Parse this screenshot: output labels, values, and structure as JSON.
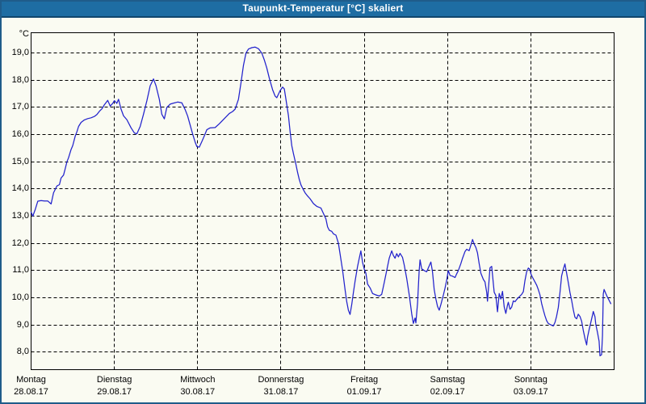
{
  "window": {
    "title": "Taupunkt-Temperatur [°C] skaliert"
  },
  "colors": {
    "titlebar_bg": "#1e6da3",
    "titlebar_text": "#ffffff",
    "titlebar_edge": "#11466d",
    "window_border": "#1f5c8a",
    "background": "#fafbf2",
    "plot_border": "#000000",
    "grid": "#000000",
    "line": "#2222cc",
    "text": "#000000"
  },
  "chart_data": {
    "type": "line",
    "title": "Taupunkt-Temperatur [°C] skaliert",
    "grid": {
      "style": "dashed",
      "color": "#000000"
    },
    "legend": "none",
    "y_axis": {
      "unit": "°C",
      "tick_labels": [
        "19,0",
        "18,0",
        "17,0",
        "16,0",
        "15,0",
        "14,0",
        "13,0",
        "12,0",
        "11,0",
        "10,0",
        "9,0",
        "8,0"
      ],
      "tick_values": [
        19,
        18,
        17,
        16,
        15,
        14,
        13,
        12,
        11,
        10,
        9,
        8
      ],
      "range": [
        7.35,
        19.75
      ]
    },
    "x_axis": {
      "range_days": [
        0,
        7
      ],
      "tick_labels": [
        {
          "day": "Montag",
          "date": "28.08.17"
        },
        {
          "day": "Dienstag",
          "date": "29.08.17"
        },
        {
          "day": "Mittwoch",
          "date": "30.08.17"
        },
        {
          "day": "Donnerstag",
          "date": "31.08.17"
        },
        {
          "day": "Freitag",
          "date": "01.09.17"
        },
        {
          "day": "Samstag",
          "date": "02.09.17"
        },
        {
          "day": "Sonntag",
          "date": "03.09.17"
        }
      ]
    },
    "series": [
      {
        "name": "Taupunkt-Temperatur",
        "color": "#2222cc",
        "points_day_degC": [
          [
            0.0,
            13.15
          ],
          [
            0.02,
            13.0
          ],
          [
            0.05,
            13.25
          ],
          [
            0.08,
            13.55
          ],
          [
            0.12,
            13.57
          ],
          [
            0.16,
            13.56
          ],
          [
            0.2,
            13.56
          ],
          [
            0.24,
            13.45
          ],
          [
            0.27,
            13.86
          ],
          [
            0.31,
            14.11
          ],
          [
            0.34,
            14.16
          ],
          [
            0.36,
            14.4
          ],
          [
            0.39,
            14.51
          ],
          [
            0.41,
            14.75
          ],
          [
            0.43,
            15.0
          ],
          [
            0.45,
            15.15
          ],
          [
            0.48,
            15.45
          ],
          [
            0.5,
            15.6
          ],
          [
            0.53,
            15.95
          ],
          [
            0.55,
            16.1
          ],
          [
            0.57,
            16.3
          ],
          [
            0.6,
            16.45
          ],
          [
            0.64,
            16.54
          ],
          [
            0.68,
            16.59
          ],
          [
            0.72,
            16.62
          ],
          [
            0.76,
            16.67
          ],
          [
            0.79,
            16.74
          ],
          [
            0.82,
            16.86
          ],
          [
            0.85,
            16.95
          ],
          [
            0.88,
            17.1
          ],
          [
            0.92,
            17.26
          ],
          [
            0.95,
            17.05
          ],
          [
            0.98,
            17.15
          ],
          [
            1.0,
            17.25
          ],
          [
            1.03,
            17.15
          ],
          [
            1.05,
            17.3
          ],
          [
            1.08,
            16.94
          ],
          [
            1.11,
            16.69
          ],
          [
            1.15,
            16.55
          ],
          [
            1.2,
            16.25
          ],
          [
            1.24,
            16.06
          ],
          [
            1.27,
            16.03
          ],
          [
            1.31,
            16.3
          ],
          [
            1.35,
            16.75
          ],
          [
            1.39,
            17.25
          ],
          [
            1.43,
            17.8
          ],
          [
            1.47,
            18.05
          ],
          [
            1.5,
            17.8
          ],
          [
            1.54,
            17.3
          ],
          [
            1.57,
            16.75
          ],
          [
            1.6,
            16.58
          ],
          [
            1.63,
            17.0
          ],
          [
            1.67,
            17.12
          ],
          [
            1.71,
            17.16
          ],
          [
            1.76,
            17.2
          ],
          [
            1.81,
            17.17
          ],
          [
            1.85,
            16.92
          ],
          [
            1.88,
            16.68
          ],
          [
            1.91,
            16.35
          ],
          [
            1.94,
            16.02
          ],
          [
            1.97,
            15.72
          ],
          [
            1.99,
            15.56
          ],
          [
            2.02,
            15.54
          ],
          [
            2.05,
            15.74
          ],
          [
            2.08,
            15.95
          ],
          [
            2.11,
            16.18
          ],
          [
            2.15,
            16.25
          ],
          [
            2.21,
            16.26
          ],
          [
            2.26,
            16.4
          ],
          [
            2.32,
            16.59
          ],
          [
            2.38,
            16.78
          ],
          [
            2.42,
            16.85
          ],
          [
            2.45,
            16.94
          ],
          [
            2.49,
            17.3
          ],
          [
            2.52,
            17.9
          ],
          [
            2.55,
            18.55
          ],
          [
            2.58,
            19.0
          ],
          [
            2.61,
            19.15
          ],
          [
            2.65,
            19.2
          ],
          [
            2.69,
            19.22
          ],
          [
            2.73,
            19.16
          ],
          [
            2.77,
            19.0
          ],
          [
            2.8,
            18.75
          ],
          [
            2.83,
            18.45
          ],
          [
            2.86,
            18.08
          ],
          [
            2.9,
            17.65
          ],
          [
            2.93,
            17.42
          ],
          [
            2.95,
            17.36
          ],
          [
            2.99,
            17.62
          ],
          [
            3.02,
            17.75
          ],
          [
            3.04,
            17.68
          ],
          [
            3.06,
            17.3
          ],
          [
            3.09,
            16.7
          ],
          [
            3.11,
            16.1
          ],
          [
            3.13,
            15.6
          ],
          [
            3.15,
            15.3
          ],
          [
            3.18,
            14.9
          ],
          [
            3.2,
            14.6
          ],
          [
            3.22,
            14.35
          ],
          [
            3.24,
            14.15
          ],
          [
            3.26,
            14.03
          ],
          [
            3.29,
            13.86
          ],
          [
            3.32,
            13.74
          ],
          [
            3.35,
            13.64
          ],
          [
            3.39,
            13.46
          ],
          [
            3.43,
            13.36
          ],
          [
            3.48,
            13.3
          ],
          [
            3.51,
            13.1
          ],
          [
            3.54,
            12.9
          ],
          [
            3.56,
            12.6
          ],
          [
            3.58,
            12.48
          ],
          [
            3.61,
            12.44
          ],
          [
            3.63,
            12.35
          ],
          [
            3.66,
            12.3
          ],
          [
            3.69,
            12.0
          ],
          [
            3.71,
            11.6
          ],
          [
            3.74,
            11.0
          ],
          [
            3.77,
            10.3
          ],
          [
            3.79,
            9.85
          ],
          [
            3.81,
            9.53
          ],
          [
            3.83,
            9.38
          ],
          [
            3.85,
            9.75
          ],
          [
            3.87,
            10.2
          ],
          [
            3.89,
            10.6
          ],
          [
            3.92,
            11.15
          ],
          [
            3.94,
            11.45
          ],
          [
            3.96,
            11.72
          ],
          [
            3.98,
            11.3
          ],
          [
            4.0,
            11.05
          ],
          [
            4.02,
            10.9
          ],
          [
            4.04,
            10.5
          ],
          [
            4.07,
            10.36
          ],
          [
            4.1,
            10.15
          ],
          [
            4.14,
            10.1
          ],
          [
            4.18,
            10.06
          ],
          [
            4.21,
            10.12
          ],
          [
            4.24,
            10.55
          ],
          [
            4.27,
            11.0
          ],
          [
            4.3,
            11.45
          ],
          [
            4.33,
            11.72
          ],
          [
            4.35,
            11.55
          ],
          [
            4.37,
            11.45
          ],
          [
            4.39,
            11.62
          ],
          [
            4.41,
            11.5
          ],
          [
            4.43,
            11.63
          ],
          [
            4.46,
            11.48
          ],
          [
            4.48,
            11.2
          ],
          [
            4.51,
            10.7
          ],
          [
            4.54,
            10.1
          ],
          [
            4.57,
            9.4
          ],
          [
            4.59,
            9.05
          ],
          [
            4.61,
            9.25
          ],
          [
            4.62,
            9.07
          ],
          [
            4.64,
            9.8
          ],
          [
            4.66,
            11.0
          ],
          [
            4.67,
            11.39
          ],
          [
            4.69,
            11.06
          ],
          [
            4.72,
            11.0
          ],
          [
            4.75,
            10.95
          ],
          [
            4.77,
            11.1
          ],
          [
            4.8,
            11.31
          ],
          [
            4.82,
            10.95
          ],
          [
            4.84,
            10.3
          ],
          [
            4.86,
            9.95
          ],
          [
            4.88,
            9.68
          ],
          [
            4.9,
            9.54
          ],
          [
            4.92,
            9.75
          ],
          [
            4.95,
            10.1
          ],
          [
            4.97,
            10.35
          ],
          [
            4.99,
            10.65
          ],
          [
            5.0,
            10.83
          ],
          [
            5.01,
            11.0
          ],
          [
            5.03,
            10.82
          ],
          [
            5.06,
            10.79
          ],
          [
            5.09,
            10.74
          ],
          [
            5.11,
            10.88
          ],
          [
            5.13,
            11.0
          ],
          [
            5.16,
            11.25
          ],
          [
            5.18,
            11.45
          ],
          [
            5.21,
            11.7
          ],
          [
            5.23,
            11.78
          ],
          [
            5.26,
            11.73
          ],
          [
            5.28,
            11.93
          ],
          [
            5.3,
            12.14
          ],
          [
            5.32,
            11.97
          ],
          [
            5.34,
            11.85
          ],
          [
            5.36,
            11.65
          ],
          [
            5.38,
            11.25
          ],
          [
            5.4,
            10.9
          ],
          [
            5.43,
            10.67
          ],
          [
            5.45,
            10.58
          ],
          [
            5.47,
            10.2
          ],
          [
            5.48,
            9.87
          ],
          [
            5.51,
            11.1
          ],
          [
            5.53,
            11.15
          ],
          [
            5.56,
            10.2
          ],
          [
            5.58,
            10.08
          ],
          [
            5.6,
            9.48
          ],
          [
            5.62,
            10.15
          ],
          [
            5.64,
            9.95
          ],
          [
            5.66,
            10.23
          ],
          [
            5.68,
            9.66
          ],
          [
            5.7,
            9.42
          ],
          [
            5.72,
            9.73
          ],
          [
            5.73,
            9.83
          ],
          [
            5.75,
            9.57
          ],
          [
            5.77,
            9.65
          ],
          [
            5.79,
            9.88
          ],
          [
            5.81,
            9.85
          ],
          [
            5.83,
            9.93
          ],
          [
            5.86,
            10.03
          ],
          [
            5.89,
            10.12
          ],
          [
            5.91,
            10.22
          ],
          [
            5.93,
            10.63
          ],
          [
            5.95,
            10.95
          ],
          [
            5.97,
            11.09
          ],
          [
            5.99,
            11.04
          ],
          [
            6.0,
            10.88
          ],
          [
            6.02,
            10.75
          ],
          [
            6.05,
            10.58
          ],
          [
            6.07,
            10.46
          ],
          [
            6.09,
            10.3
          ],
          [
            6.11,
            10.1
          ],
          [
            6.13,
            9.78
          ],
          [
            6.15,
            9.55
          ],
          [
            6.17,
            9.33
          ],
          [
            6.19,
            9.15
          ],
          [
            6.21,
            9.05
          ],
          [
            6.24,
            9.0
          ],
          [
            6.27,
            8.96
          ],
          [
            6.29,
            9.09
          ],
          [
            6.31,
            9.32
          ],
          [
            6.33,
            9.64
          ],
          [
            6.35,
            10.2
          ],
          [
            6.37,
            10.8
          ],
          [
            6.39,
            11.05
          ],
          [
            6.41,
            11.24
          ],
          [
            6.43,
            10.9
          ],
          [
            6.45,
            10.55
          ],
          [
            6.47,
            10.2
          ],
          [
            6.49,
            9.9
          ],
          [
            6.51,
            9.55
          ],
          [
            6.53,
            9.28
          ],
          [
            6.55,
            9.22
          ],
          [
            6.57,
            9.39
          ],
          [
            6.59,
            9.31
          ],
          [
            6.61,
            9.13
          ],
          [
            6.63,
            8.8
          ],
          [
            6.65,
            8.5
          ],
          [
            6.67,
            8.26
          ],
          [
            6.68,
            8.53
          ],
          [
            6.7,
            8.83
          ],
          [
            6.72,
            9.08
          ],
          [
            6.74,
            9.35
          ],
          [
            6.75,
            9.49
          ],
          [
            6.77,
            9.3
          ],
          [
            6.78,
            9.02
          ],
          [
            6.8,
            8.72
          ],
          [
            6.82,
            8.4
          ],
          [
            6.83,
            7.86
          ],
          [
            6.85,
            7.9
          ],
          [
            6.86,
            8.6
          ],
          [
            6.87,
            10.14
          ],
          [
            6.88,
            10.3
          ],
          [
            6.9,
            10.15
          ],
          [
            6.92,
            10.02
          ],
          [
            6.94,
            9.9
          ],
          [
            6.96,
            9.78
          ]
        ]
      }
    ]
  }
}
